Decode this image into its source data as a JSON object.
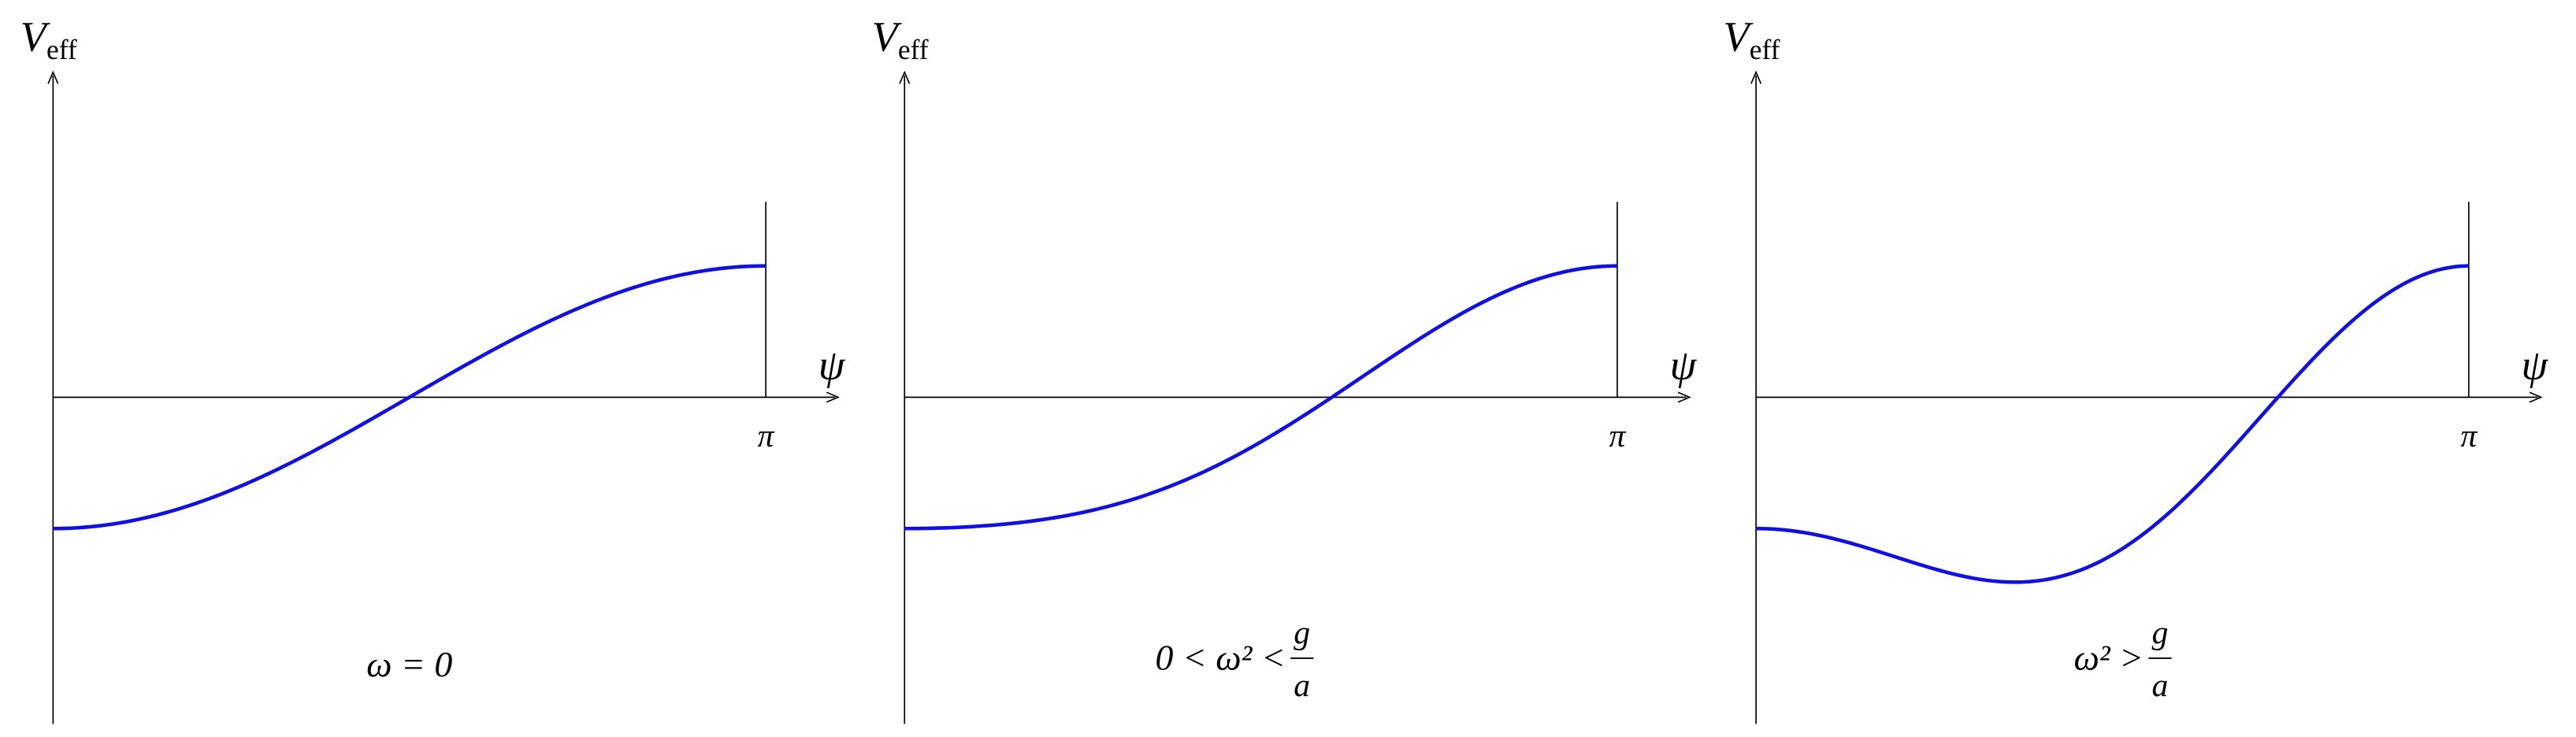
{
  "panels": [
    {
      "y_label": "V",
      "y_label_sub": "eff",
      "x_label": "ψ",
      "tick": "π",
      "caption": {
        "text": "ω = 0"
      }
    },
    {
      "y_label": "V",
      "y_label_sub": "eff",
      "x_label": "ψ",
      "tick": "π",
      "caption": {
        "text": "0 < ω² <",
        "numerator": "g",
        "denominator": "a"
      }
    },
    {
      "y_label": "V",
      "y_label_sub": "eff",
      "x_label": "ψ",
      "tick": "π",
      "caption": {
        "text": "ω² >",
        "numerator": "g",
        "denominator": "a"
      }
    }
  ]
}
